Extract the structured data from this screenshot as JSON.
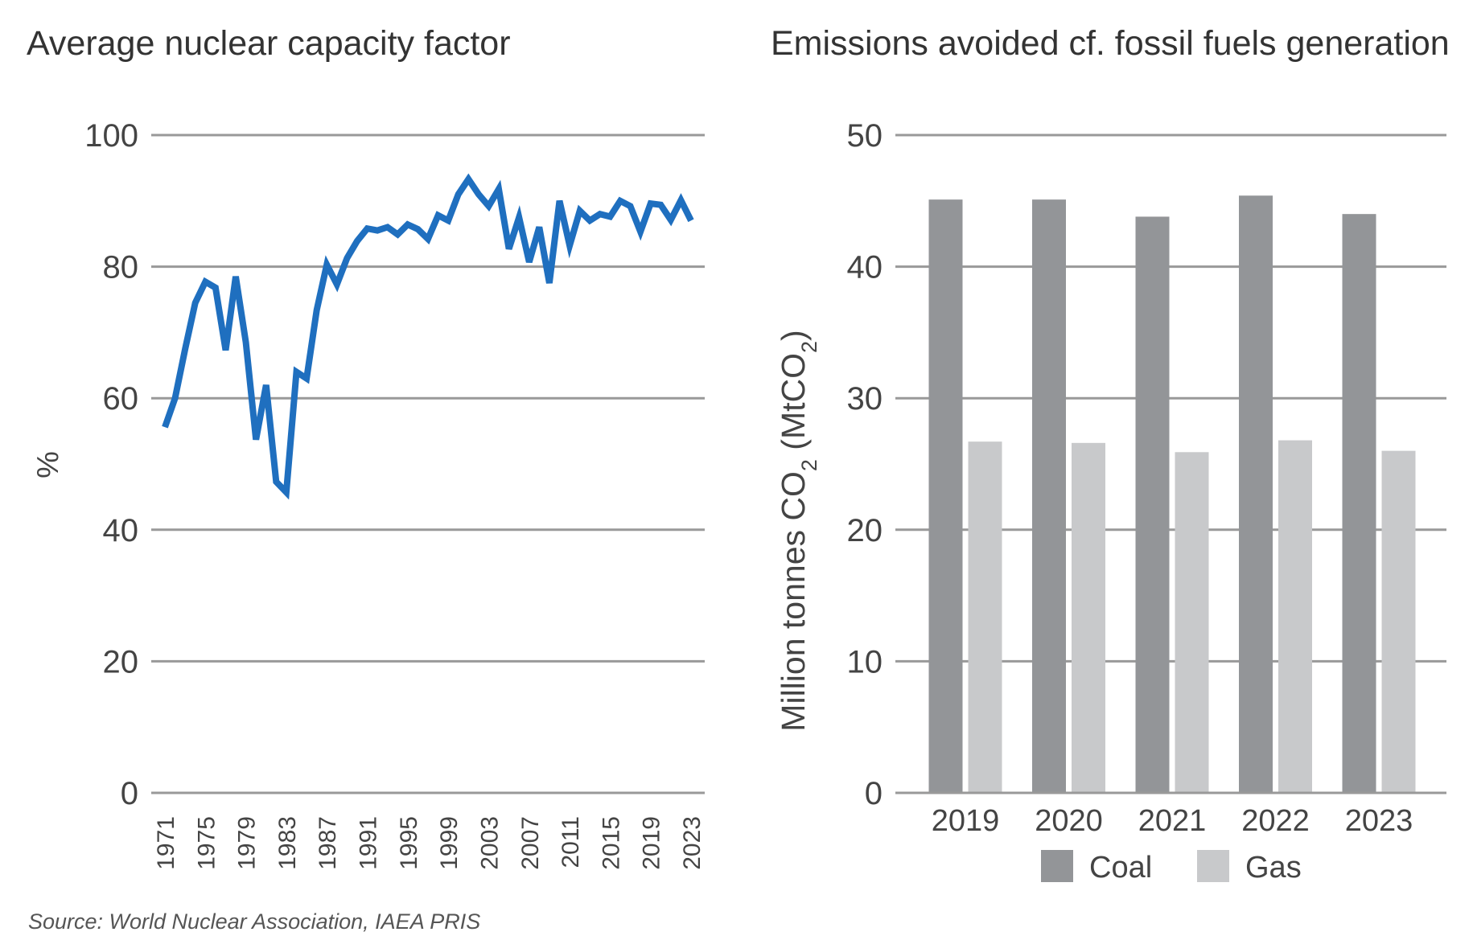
{
  "left_chart": {
    "title": "Average nuclear capacity factor"
  },
  "right_chart": {
    "title": "Emissions avoided cf. fossil fuels generation"
  },
  "source": "Source: World Nuclear Association, IAEA PRIS",
  "chart_data": [
    {
      "type": "line",
      "title": "Average nuclear capacity factor",
      "xlabel": "",
      "ylabel": "%",
      "ylim": [
        0,
        100
      ],
      "yticks": [
        0,
        20,
        40,
        60,
        80,
        100
      ],
      "xticks": [
        "1971",
        "1975",
        "1979",
        "1983",
        "1987",
        "1991",
        "1995",
        "1999",
        "2003",
        "2007",
        "2011",
        "2015",
        "2019",
        "2023"
      ],
      "grid": true,
      "line_color": "#1f6fbf",
      "x": [
        1971,
        1972,
        1973,
        1974,
        1975,
        1976,
        1977,
        1978,
        1979,
        1980,
        1981,
        1982,
        1983,
        1984,
        1985,
        1986,
        1987,
        1988,
        1989,
        1990,
        1991,
        1992,
        1993,
        1994,
        1995,
        1996,
        1997,
        1998,
        1999,
        2000,
        2001,
        2002,
        2003,
        2004,
        2005,
        2006,
        2007,
        2008,
        2009,
        2010,
        2011,
        2012,
        2013,
        2014,
        2015,
        2016,
        2017,
        2018,
        2019,
        2020,
        2021,
        2022,
        2023
      ],
      "y": [
        55.6,
        60,
        67.5,
        74.5,
        77.7,
        76.8,
        67.3,
        78.5,
        68.5,
        53.7,
        62,
        47.3,
        45.7,
        64,
        63,
        73.4,
        80.3,
        77.3,
        81.3,
        83.9,
        85.8,
        85.5,
        86,
        84.9,
        86.4,
        85.7,
        84.2,
        87.8,
        87,
        91,
        93.3,
        91,
        89.2,
        91.8,
        82.7,
        87.5,
        80.7,
        86,
        77.5,
        90,
        83.2,
        88.5,
        87,
        88,
        87.6,
        90,
        89.2,
        85.3,
        89.6,
        89.4,
        87.1,
        90.1,
        87
      ]
    },
    {
      "type": "bar",
      "title": "Emissions avoided cf. fossil fuels generation",
      "xlabel": "",
      "ylabel": "Million tonnes CO2 (MtCO2)",
      "ylim": [
        0,
        50
      ],
      "yticks": [
        0,
        10,
        20,
        30,
        40,
        50
      ],
      "grid": true,
      "legend_position": "bottom",
      "categories": [
        "2019",
        "2020",
        "2021",
        "2022",
        "2023"
      ],
      "series": [
        {
          "name": "Coal",
          "color": "#939598",
          "values": [
            45.1,
            45.1,
            43.8,
            45.4,
            44.0
          ]
        },
        {
          "name": "Gas",
          "color": "#c8c9cb",
          "values": [
            26.7,
            26.6,
            25.9,
            26.8,
            26.0
          ]
        }
      ]
    }
  ]
}
